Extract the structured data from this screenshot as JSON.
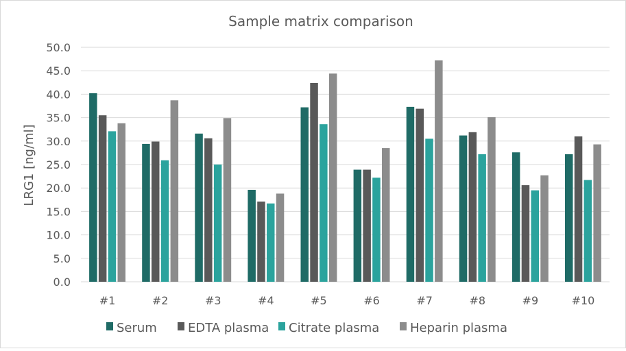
{
  "chart_data": {
    "type": "bar",
    "title": "Sample matrix comparison",
    "xlabel": "",
    "ylabel": "LRG1 [ng/ml]",
    "ylim": [
      0,
      50
    ],
    "ytick_step": 5,
    "ytick_labels": [
      "0.0",
      "5.0",
      "10.0",
      "15.0",
      "20.0",
      "25.0",
      "30.0",
      "35.0",
      "40.0",
      "45.0",
      "50.0"
    ],
    "grid": "horizontal",
    "legend_position": "bottom",
    "categories": [
      "#1",
      "#2",
      "#3",
      "#4",
      "#5",
      "#6",
      "#7",
      "#8",
      "#9",
      "#10"
    ],
    "series": [
      {
        "name": "Serum",
        "color": "#1f6b66",
        "values": [
          40.2,
          29.4,
          31.6,
          19.6,
          37.2,
          23.9,
          37.3,
          31.2,
          27.6,
          27.2
        ]
      },
      {
        "name": "EDTA plasma",
        "color": "#595959",
        "values": [
          35.5,
          29.9,
          30.6,
          17.1,
          42.4,
          23.9,
          36.9,
          31.9,
          20.6,
          31.0
        ]
      },
      {
        "name": "Citrate plasma",
        "color": "#2ba39d",
        "values": [
          32.1,
          25.9,
          25.0,
          16.7,
          33.6,
          22.2,
          30.5,
          27.2,
          19.5,
          21.7
        ]
      },
      {
        "name": "Heparin plasma",
        "color": "#8c8c8c",
        "values": [
          33.8,
          38.7,
          34.9,
          18.8,
          44.4,
          28.5,
          47.2,
          35.1,
          22.7,
          29.3
        ]
      }
    ]
  }
}
